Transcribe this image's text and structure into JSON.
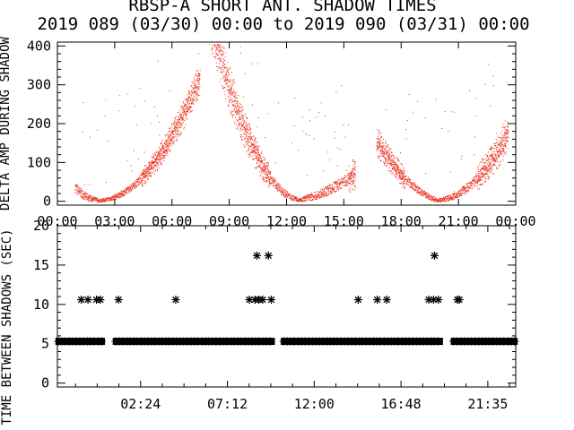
{
  "title": {
    "line1": "RBSP-A SHORT ANT. SHADOW TIMES",
    "line2": "2019 089 (03/30) 00:00 to 2019 090 (03/31) 00:00"
  },
  "colors": {
    "background": "#ffffff",
    "axes": "#000000",
    "scatter": "#e8321e",
    "marker": "#000000"
  },
  "chart_data": [
    {
      "type": "scatter",
      "ylabel": "DELTA AMP DURING SHADOW",
      "xlim": [
        0,
        24
      ],
      "ylim": [
        -10,
        410
      ],
      "xtick_labels": [
        "00:00",
        "03:00",
        "06:00",
        "09:00",
        "12:00",
        "15:00",
        "18:00",
        "21:00",
        "00:00"
      ],
      "ytick_labels": [
        "0",
        "100",
        "200",
        "300",
        "400"
      ],
      "shadow_minima_hours": [
        2.1,
        12.8,
        19.8
      ],
      "grid": false
    },
    {
      "type": "scatter",
      "ylabel": "TIME BETWEEN SHADOWS (SEC)",
      "marker": "asterisk",
      "xlim": [
        0,
        24
      ],
      "ylim": [
        -0.5,
        20
      ],
      "xtick_labels": [
        "02:24",
        "07:12",
        "12:00",
        "16:48",
        "21:35"
      ],
      "ytick_labels": [
        "0",
        "5",
        "10",
        "15",
        "20"
      ],
      "baseline": {
        "y": 5.3,
        "segments": [
          [
            0.05,
            2.35
          ],
          [
            3.05,
            11.25
          ],
          [
            11.85,
            20.05
          ],
          [
            20.75,
            23.95
          ]
        ]
      },
      "points": [
        {
          "x": 1.25,
          "y": 10.6
        },
        {
          "x": 1.6,
          "y": 10.6
        },
        {
          "x": 2.05,
          "y": 10.6
        },
        {
          "x": 2.25,
          "y": 10.6
        },
        {
          "x": 3.2,
          "y": 10.6
        },
        {
          "x": 6.2,
          "y": 10.6
        },
        {
          "x": 10.05,
          "y": 10.6
        },
        {
          "x": 10.35,
          "y": 10.6
        },
        {
          "x": 10.45,
          "y": 16.2
        },
        {
          "x": 10.55,
          "y": 10.6
        },
        {
          "x": 10.75,
          "y": 10.6
        },
        {
          "x": 11.05,
          "y": 16.2
        },
        {
          "x": 11.2,
          "y": 10.6
        },
        {
          "x": 15.75,
          "y": 10.6
        },
        {
          "x": 16.75,
          "y": 10.6
        },
        {
          "x": 17.25,
          "y": 10.6
        },
        {
          "x": 19.45,
          "y": 10.6
        },
        {
          "x": 19.7,
          "y": 10.6
        },
        {
          "x": 19.75,
          "y": 16.2
        },
        {
          "x": 19.95,
          "y": 10.6
        },
        {
          "x": 20.95,
          "y": 10.6
        },
        {
          "x": 21.05,
          "y": 10.6
        }
      ]
    }
  ]
}
